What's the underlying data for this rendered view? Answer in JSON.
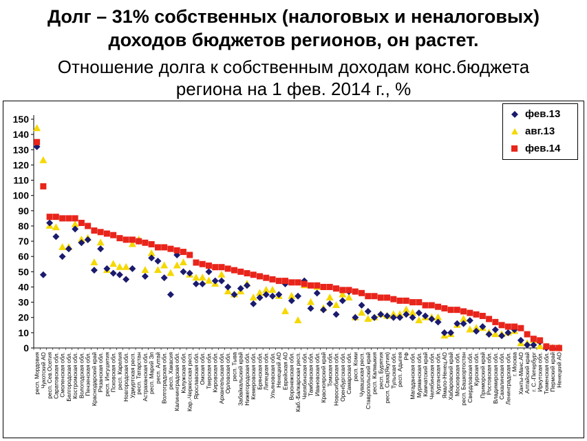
{
  "title_line1": "Долг – 31% собственных (налоговых и неналоговых)",
  "title_line2": "доходов бюджетов регионов, он растет.",
  "subtitle_line1": "Отношение долга к собственным доходам конс.бюджета",
  "subtitle_line2": "региона на 1 фев. 2014 г., %",
  "colors": {
    "feb13": "#1a1a6e",
    "aug13": "#f5d800",
    "feb14": "#e8251b"
  },
  "chart_data": {
    "type": "scatter",
    "ylim": [
      0,
      150
    ],
    "yticks": [
      0,
      10,
      20,
      30,
      40,
      50,
      60,
      70,
      80,
      90,
      100,
      110,
      120,
      130,
      140,
      150
    ],
    "grid": false,
    "legend_position": "top-right",
    "categories": [
      "респ. Мордовия",
      "Чукотский АО",
      "респ. Сев.Осетия",
      "Саратовская обл.",
      "Смоленская обл.",
      "Белгородская обл.",
      "Костромская обл.",
      "Вологодская обл.",
      "Пензенская обл.",
      "Краснодарский край",
      "Рязанская обл.",
      "респ. Ингушетия",
      "Псковская обл.",
      "респ. Карелия",
      "Новгородская обл.",
      "Удмуртская респ.",
      "респ. Татарстан",
      "Астраханская обл.",
      "респ. Марий Эл",
      "респ. Алтай",
      "Волгоградская обл.",
      "респ. Хакасия",
      "Калининградская обл.",
      "Калужская обл.",
      "Кар.-Черкесская респ.",
      "Ярославская обл.",
      "Омская обл.",
      "Тверская обл.",
      "Кировская обл.",
      "Архангельская обл.",
      "Орловская обл.",
      "респ. Тыва",
      "Забайкальский край",
      "Нижегородская обл.",
      "Кемеровская обл.",
      "Брянская обл.",
      "Липецкая обл.",
      "Ульяновская обл.",
      "Ненецкий АО",
      "Еврейская АО",
      "Воронежская обл.",
      "Каб.-Балкарская респ.",
      "Челябинская обл.",
      "Тамбовская обл.",
      "Ивановская обл.",
      "Красноярский край",
      "Томская обл.",
      "Новосибирская обл.",
      "Оренбургская обл.",
      "Самарская обл.",
      "респ. Коми",
      "Чувашская респ.",
      "Ставропольский край",
      "респ. Калмыкия",
      "респ. Бурятия",
      "респ. Саха(Якутия)",
      "Тульская обл.",
      "респ. Адыгея",
      "РФ",
      "Магаданская обл.",
      "Мурманская обл.",
      "Камчатский край",
      "Челябинская обл.",
      "Курганская обл.",
      "Ямало-Ненец.АО",
      "Хабаровский край",
      "Московская обл.",
      "респ. Башкортостан",
      "Свердловская обл.",
      "Курская обл.",
      "Приморский край",
      "Ростовская обл.",
      "Владимирская обл.",
      "Сахалинская обл.",
      "Ленинградская обл.",
      "г. Москва",
      "Ханты-Манс.АО",
      "Алтайский край",
      "г. С.-Петербург",
      "Иркутская обл.",
      "Тюменская обл.",
      "Пермский край",
      "Ненецкий АО"
    ],
    "series": [
      {
        "name": "фев.13",
        "marker": "diamond",
        "values": [
          132,
          48,
          82,
          73,
          60,
          65,
          78,
          69,
          71,
          51,
          65,
          52,
          49,
          48,
          45,
          52,
          70,
          47,
          59,
          57,
          46,
          35,
          61,
          50,
          49,
          42,
          42,
          50,
          44,
          44,
          40,
          35,
          39,
          41,
          29,
          33,
          35,
          34,
          35,
          42,
          31,
          34,
          44,
          26,
          36,
          25,
          29,
          22,
          31,
          37,
          20,
          28,
          24,
          20,
          22,
          21,
          20,
          20,
          22,
          20,
          23,
          21,
          19,
          17,
          10,
          10,
          16,
          16,
          18,
          11,
          14,
          9,
          12,
          8,
          10,
          12,
          5,
          2,
          2,
          4,
          0,
          0,
          0
        ]
      },
      {
        "name": "авг.13",
        "marker": "triangle",
        "values": [
          144,
          123,
          80,
          79,
          66,
          66,
          81,
          71,
          72,
          56,
          69,
          51,
          55,
          53,
          53,
          68,
          71,
          51,
          62,
          51,
          54,
          49,
          54,
          56,
          48,
          46,
          46,
          44,
          42,
          48,
          37,
          35,
          37,
          42,
          33,
          36,
          38,
          38,
          34,
          24,
          34,
          18,
          41,
          30,
          40,
          26,
          33,
          28,
          35,
          33,
          20,
          23,
          19,
          20,
          22,
          21,
          22,
          22,
          25,
          23,
          18,
          20,
          20,
          20,
          8,
          9,
          15,
          19,
          12,
          13,
          13,
          10,
          9,
          9,
          10,
          11,
          3,
          3,
          5,
          1,
          1,
          0,
          0
        ]
      },
      {
        "name": "фев.14",
        "marker": "square",
        "values": [
          135,
          106,
          86,
          86,
          85,
          85,
          85,
          82,
          80,
          77,
          76,
          75,
          74,
          72,
          71,
          71,
          70,
          69,
          68,
          66,
          66,
          65,
          64,
          63,
          61,
          56,
          55,
          54,
          53,
          53,
          52,
          51,
          50,
          49,
          48,
          47,
          46,
          45,
          44,
          44,
          43,
          43,
          42,
          41,
          41,
          40,
          40,
          39,
          38,
          38,
          37,
          36,
          34,
          34,
          33,
          33,
          32,
          31,
          31,
          30,
          30,
          28,
          28,
          27,
          26,
          25,
          25,
          24,
          23,
          22,
          21,
          19,
          17,
          15,
          14,
          14,
          13,
          9,
          6,
          5,
          1,
          0,
          0
        ]
      }
    ]
  }
}
